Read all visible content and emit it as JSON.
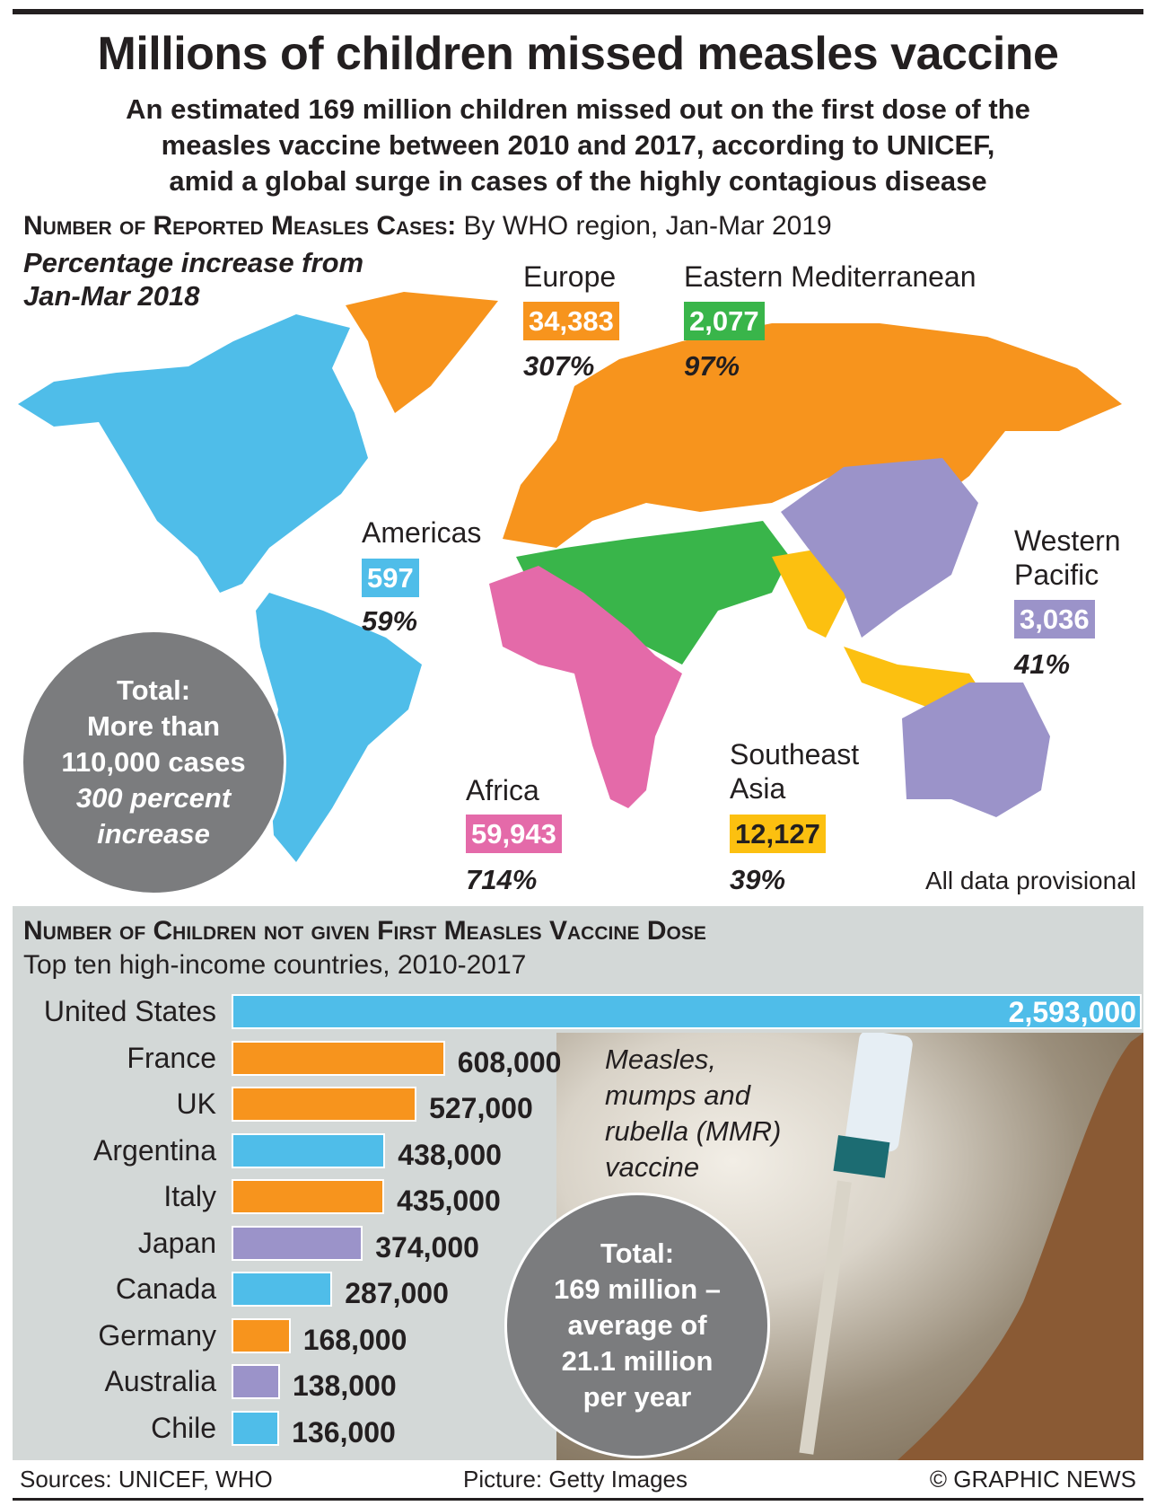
{
  "header": {
    "title": "Millions of children missed measles vaccine",
    "subtitle": [
      "An estimated 169 million children missed out on the first dose of the",
      "measles vaccine between 2010 and 2017, according to UNICEF,",
      "amid a global surge in cases of the highly contagious disease"
    ]
  },
  "map": {
    "heading_bold": "Number of Reported Measles Cases:",
    "heading_rest": " By WHO region, Jan-Mar 2019",
    "pct_heading": [
      "Percentage increase from",
      "Jan-Mar 2018"
    ],
    "regions": [
      {
        "name": "Europe",
        "cases": "34,383",
        "pct": "307%",
        "color": "#f7941d"
      },
      {
        "name": "Eastern Mediterranean",
        "cases": "2,077",
        "pct": "97%",
        "color": "#39b54a"
      },
      {
        "name": "Americas",
        "cases": "597",
        "pct": "59%",
        "color": "#4fbde9"
      },
      {
        "name": "Western",
        "name2": "Pacific",
        "cases": "3,036",
        "pct": "41%",
        "color": "#9b93c9"
      },
      {
        "name": "Africa",
        "cases": "59,943",
        "pct": "714%",
        "color": "#e46aa9"
      },
      {
        "name": "Southeast",
        "name2": "Asia",
        "cases": "12,127",
        "pct": "39%",
        "color": "#fcc010"
      }
    ],
    "total": [
      "Total:",
      "More than",
      "110,000 cases",
      "300 percent",
      "increase"
    ],
    "note": "All data provisional"
  },
  "chart_data": {
    "type": "bar",
    "title": "Number of Children not given First Measles Vaccine Dose",
    "subtitle": "Top ten high-income countries, 2010-2017",
    "categories": [
      "United States",
      "France",
      "UK",
      "Argentina",
      "Italy",
      "Japan",
      "Canada",
      "Germany",
      "Australia",
      "Chile"
    ],
    "values": [
      2593000,
      608000,
      527000,
      438000,
      435000,
      374000,
      287000,
      168000,
      138000,
      136000
    ],
    "labels": [
      "2,593,000",
      "608,000",
      "527,000",
      "438,000",
      "435,000",
      "374,000",
      "287,000",
      "168,000",
      "138,000",
      "136,000"
    ],
    "colors": [
      "#4fbde9",
      "#f7941d",
      "#f7941d",
      "#4fbde9",
      "#f7941d",
      "#9b93c9",
      "#4fbde9",
      "#f7941d",
      "#9b93c9",
      "#4fbde9"
    ]
  },
  "bars": {
    "mmr": [
      "Measles,",
      "mumps and",
      "rubella (MMR)",
      "vaccine"
    ],
    "total": [
      "Total:",
      "169 million –",
      "average of",
      "21.1 million",
      "per year"
    ]
  },
  "footer": {
    "sources": "Sources: UNICEF, WHO",
    "picture": "Picture: Getty Images",
    "credit": "© GRAPHIC NEWS"
  }
}
